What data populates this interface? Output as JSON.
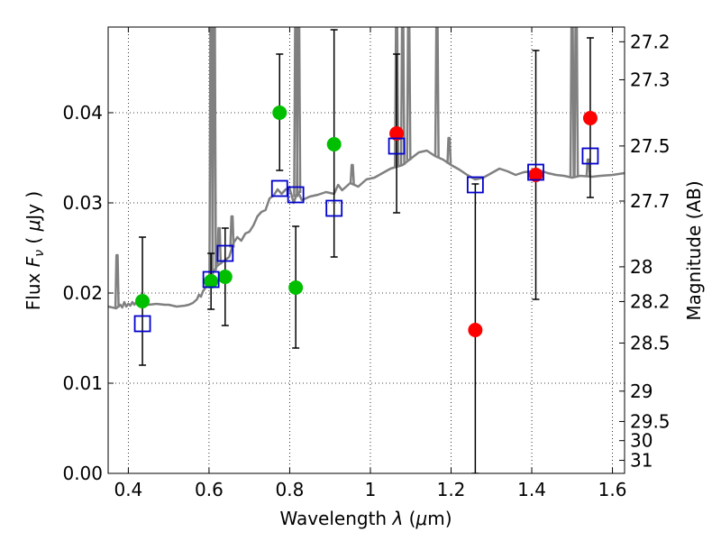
{
  "chart_data": {
    "type": "scatter",
    "xlabel_prefix": "Wavelength ",
    "xlabel_symbol": "λ",
    "xlabel_unit_open": " (",
    "xlabel_unit_mu": "μ",
    "xlabel_unit_close": "m)",
    "ylabel_prefix": "Flux ",
    "ylabel_symbol": "F",
    "ylabel_subscript": "ν",
    "ylabel_unit_open": " ( ",
    "ylabel_unit_mu": "μ",
    "ylabel_unit_close": "Jy )",
    "y2label": "Magnitude (AB)",
    "xlim": [
      0.35,
      1.63
    ],
    "ylim": [
      0.0,
      0.0495
    ],
    "grid": true,
    "grid_style": "dotted",
    "x_ticks": [
      {
        "value": 0.4,
        "label": "0.4"
      },
      {
        "value": 0.6,
        "label": "0.6"
      },
      {
        "value": 0.8,
        "label": "0.8"
      },
      {
        "value": 1.0,
        "label": "1"
      },
      {
        "value": 1.2,
        "label": "1.2"
      },
      {
        "value": 1.4,
        "label": "1.4"
      },
      {
        "value": 1.6,
        "label": "1.6"
      }
    ],
    "y_ticks": [
      {
        "value": 0.0,
        "label": "0.00"
      },
      {
        "value": 0.01,
        "label": "0.01"
      },
      {
        "value": 0.02,
        "label": "0.02"
      },
      {
        "value": 0.03,
        "label": "0.03"
      },
      {
        "value": 0.04,
        "label": "0.04"
      }
    ],
    "mag_ticks": [
      {
        "value": 27.2,
        "label": "27.2"
      },
      {
        "value": 27.3,
        "label": "27.3"
      },
      {
        "value": 27.5,
        "label": "27.5"
      },
      {
        "value": 27.7,
        "label": "27.7"
      },
      {
        "value": 28,
        "label": "28"
      },
      {
        "value": 28.2,
        "label": "28.2"
      },
      {
        "value": 28.5,
        "label": "28.5"
      },
      {
        "value": 29,
        "label": "29"
      },
      {
        "value": 29.5,
        "label": "29.5"
      },
      {
        "value": 30,
        "label": "30"
      },
      {
        "value": 31,
        "label": "31"
      }
    ],
    "colors": {
      "spectrum": "#808080",
      "green": "#00bf00",
      "red": "#ff0000",
      "square": "#0000cc",
      "errorbar": "#000000"
    },
    "spectrum": [
      [
        0.35,
        0.0185
      ],
      [
        0.37,
        0.0183
      ],
      [
        0.38,
        0.0187
      ],
      [
        0.385,
        0.0184
      ],
      [
        0.39,
        0.019
      ],
      [
        0.395,
        0.0185
      ],
      [
        0.4,
        0.0188
      ],
      [
        0.405,
        0.0186
      ],
      [
        0.41,
        0.019
      ],
      [
        0.415,
        0.0187
      ],
      [
        0.42,
        0.019
      ],
      [
        0.425,
        0.0187
      ],
      [
        0.43,
        0.0189
      ],
      [
        0.45,
        0.0187
      ],
      [
        0.47,
        0.0188
      ],
      [
        0.49,
        0.0187
      ],
      [
        0.5,
        0.0187
      ],
      [
        0.52,
        0.0185
      ],
      [
        0.54,
        0.0186
      ],
      [
        0.55,
        0.0187
      ],
      [
        0.56,
        0.0189
      ],
      [
        0.57,
        0.0193
      ],
      [
        0.575,
        0.0198
      ],
      [
        0.58,
        0.0196
      ],
      [
        0.585,
        0.0202
      ],
      [
        0.59,
        0.0205
      ],
      [
        0.6,
        0.0215
      ],
      [
        0.62,
        0.023
      ],
      [
        0.65,
        0.024
      ],
      [
        0.66,
        0.0255
      ],
      [
        0.67,
        0.0262
      ],
      [
        0.68,
        0.0258
      ],
      [
        0.69,
        0.0266
      ],
      [
        0.7,
        0.0268
      ],
      [
        0.71,
        0.0275
      ],
      [
        0.72,
        0.0285
      ],
      [
        0.73,
        0.029
      ],
      [
        0.74,
        0.0292
      ],
      [
        0.75,
        0.0305
      ],
      [
        0.76,
        0.0308
      ],
      [
        0.77,
        0.0315
      ],
      [
        0.78,
        0.031
      ],
      [
        0.79,
        0.0315
      ],
      [
        0.8,
        0.0316
      ],
      [
        0.81,
        0.03
      ],
      [
        0.82,
        0.0313
      ],
      [
        0.83,
        0.0303
      ],
      [
        0.85,
        0.0307
      ],
      [
        0.87,
        0.0309
      ],
      [
        0.89,
        0.0312
      ],
      [
        0.91,
        0.031
      ],
      [
        0.92,
        0.032
      ],
      [
        0.93,
        0.0314
      ],
      [
        0.95,
        0.0322
      ],
      [
        0.97,
        0.0318
      ],
      [
        0.99,
        0.0326
      ],
      [
        1.01,
        0.0328
      ],
      [
        1.03,
        0.0333
      ],
      [
        1.05,
        0.0338
      ],
      [
        1.08,
        0.0342
      ],
      [
        1.1,
        0.0349
      ],
      [
        1.12,
        0.0356
      ],
      [
        1.14,
        0.0358
      ],
      [
        1.16,
        0.0352
      ],
      [
        1.18,
        0.0348
      ],
      [
        1.2,
        0.0342
      ],
      [
        1.22,
        0.0337
      ],
      [
        1.24,
        0.0331
      ],
      [
        1.26,
        0.0326
      ],
      [
        1.28,
        0.0328
      ],
      [
        1.3,
        0.0333
      ],
      [
        1.32,
        0.0338
      ],
      [
        1.34,
        0.0335
      ],
      [
        1.36,
        0.0331
      ],
      [
        1.38,
        0.0334
      ],
      [
        1.4,
        0.0335
      ],
      [
        1.42,
        0.0336
      ],
      [
        1.44,
        0.0333
      ],
      [
        1.46,
        0.0331
      ],
      [
        1.48,
        0.033
      ],
      [
        1.5,
        0.0328
      ],
      [
        1.52,
        0.033
      ],
      [
        1.55,
        0.0329
      ],
      [
        1.57,
        0.033
      ],
      [
        1.6,
        0.0331
      ],
      [
        1.63,
        0.0333
      ]
    ],
    "spectrum_lines": [
      [
        0.372,
        0.0242
      ],
      [
        0.605,
        0.05
      ],
      [
        0.613,
        0.05
      ],
      [
        0.625,
        0.0272
      ],
      [
        0.657,
        0.0285
      ],
      [
        0.815,
        0.05
      ],
      [
        0.822,
        0.05
      ],
      [
        0.955,
        0.0342
      ],
      [
        1.065,
        0.05
      ],
      [
        1.08,
        0.05
      ],
      [
        1.095,
        0.05
      ],
      [
        1.165,
        0.05
      ],
      [
        1.195,
        0.0372
      ],
      [
        1.5,
        0.05
      ],
      [
        1.51,
        0.05
      ],
      [
        1.54,
        0.0348
      ]
    ],
    "green_points": [
      {
        "x": 0.435,
        "y": 0.0191
      },
      {
        "x": 0.605,
        "y": 0.0213
      },
      {
        "x": 0.64,
        "y": 0.0218
      },
      {
        "x": 0.775,
        "y": 0.04
      },
      {
        "x": 0.815,
        "y": 0.0206
      },
      {
        "x": 0.91,
        "y": 0.0365
      }
    ],
    "red_points": [
      {
        "x": 1.065,
        "y": 0.0377
      },
      {
        "x": 1.26,
        "y": 0.0159
      },
      {
        "x": 1.41,
        "y": 0.0331
      },
      {
        "x": 1.545,
        "y": 0.0394
      }
    ],
    "squares": [
      {
        "x": 0.435,
        "y": 0.0166
      },
      {
        "x": 0.605,
        "y": 0.0215
      },
      {
        "x": 0.64,
        "y": 0.0244
      },
      {
        "x": 0.775,
        "y": 0.0316
      },
      {
        "x": 0.815,
        "y": 0.0309
      },
      {
        "x": 0.91,
        "y": 0.0294
      },
      {
        "x": 1.065,
        "y": 0.0363
      },
      {
        "x": 1.26,
        "y": 0.032
      },
      {
        "x": 1.41,
        "y": 0.0334
      },
      {
        "x": 1.545,
        "y": 0.0352
      }
    ],
    "errorbars": [
      {
        "x": 0.435,
        "low": 0.012,
        "high": 0.0262
      },
      {
        "x": 0.605,
        "low": 0.0182,
        "high": 0.0244
      },
      {
        "x": 0.64,
        "low": 0.0164,
        "high": 0.0272
      },
      {
        "x": 0.775,
        "low": 0.0336,
        "high": 0.0465
      },
      {
        "x": 0.815,
        "low": 0.0139,
        "high": 0.0274
      },
      {
        "x": 0.91,
        "low": 0.024,
        "high": 0.0492
      },
      {
        "x": 1.065,
        "low": 0.0289,
        "high": 0.0465
      },
      {
        "x": 1.26,
        "low": 0.0,
        "high": 0.0321
      },
      {
        "x": 1.41,
        "low": 0.0193,
        "high": 0.0469
      },
      {
        "x": 1.545,
        "low": 0.0306,
        "high": 0.0483
      }
    ]
  }
}
